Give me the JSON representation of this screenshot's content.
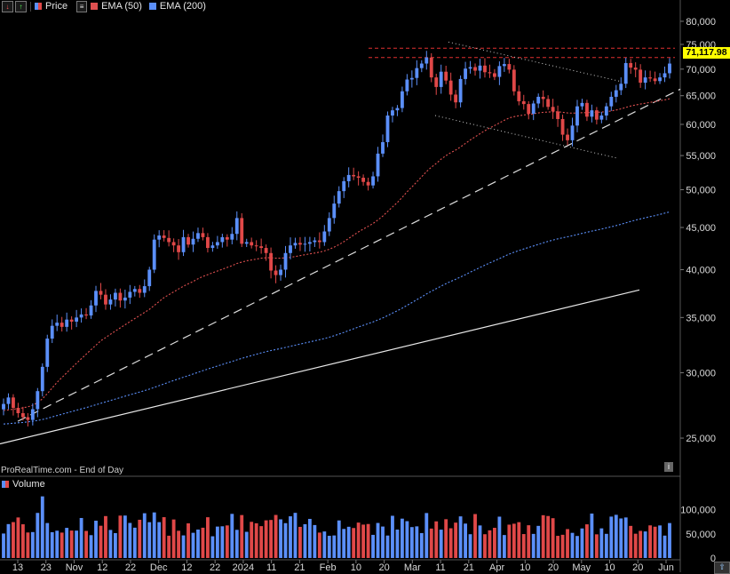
{
  "legend": {
    "price_label": "Price",
    "ema50_label": "EMA (50)",
    "ema200_label": "EMA (200)",
    "price_color": "#e04848",
    "ema50_color": "#e05050",
    "ema200_color": "#5b8ff9"
  },
  "watermark": "ProRealTime.com - End of Day",
  "volume_label": "Volume",
  "last_price": "71,117.98",
  "info_icon": "i",
  "chart_data": {
    "type": "candlestick",
    "scale": "log",
    "y_ticks": [
      "80,000",
      "75,000",
      "70,000",
      "65,000",
      "60,000",
      "55,000",
      "50,000",
      "45,000",
      "40,000",
      "35,000",
      "30,000",
      "25,000"
    ],
    "y_tick_values": [
      80000,
      75000,
      70000,
      65000,
      60000,
      55000,
      50000,
      45000,
      40000,
      35000,
      30000,
      25000
    ],
    "ylim": [
      23500,
      82000
    ],
    "x_ticks": [
      "13",
      "23",
      "Nov",
      "12",
      "22",
      "Dec",
      "12",
      "22",
      "2024",
      "11",
      "21",
      "Feb",
      "10",
      "20",
      "Mar",
      "11",
      "21",
      "Apr",
      "10",
      "20",
      "May",
      "10",
      "20",
      "Jun"
    ],
    "volume_ticks": [
      "100,000",
      "50,000",
      "0"
    ],
    "volume_tick_values": [
      100000,
      50000,
      0
    ],
    "volume_max": 140000,
    "closes": [
      27500,
      28000,
      27200,
      26800,
      26500,
      26300,
      27100,
      28500,
      30500,
      33000,
      34200,
      34500,
      34100,
      34800,
      34600,
      35000,
      35300,
      35200,
      36200,
      37700,
      37300,
      36300,
      36800,
      37500,
      36700,
      37000,
      37600,
      37900,
      37500,
      38200,
      40000,
      43500,
      44000,
      43700,
      43200,
      42800,
      42000,
      43800,
      42900,
      43600,
      44300,
      43800,
      42500,
      42800,
      43200,
      43800,
      43500,
      44200,
      46200,
      43000,
      43200,
      42800,
      42700,
      42500,
      41900,
      39900,
      39400,
      40000,
      41900,
      42800,
      43100,
      42900,
      43000,
      43200,
      43400,
      43200,
      44500,
      46200,
      48100,
      49800,
      51200,
      52100,
      51900,
      51700,
      51100,
      50600,
      51900,
      55300,
      57100,
      61500,
      62400,
      62800,
      65800,
      68000,
      68300,
      70200,
      71100,
      72300,
      68400,
      66600,
      69500,
      67800,
      65200,
      63800,
      68100,
      70100,
      70400,
      69700,
      70700,
      69400,
      69200,
      68500,
      70600,
      71000,
      69900,
      65800,
      64000,
      63500,
      61800,
      63600,
      64800,
      64400,
      63000,
      62200,
      60900,
      58300,
      57400,
      59800,
      63100,
      63700,
      61300,
      62400,
      60800,
      61500,
      63100,
      64800,
      66000,
      67200,
      71200,
      70300,
      69900,
      67400,
      68400,
      68200,
      67700,
      68400,
      69200,
      71100
    ],
    "ema50": [
      27000,
      27050,
      27100,
      27150,
      27200,
      27280,
      27400,
      27600,
      27900,
      28300,
      28750,
      29200,
      29600,
      30000,
      30400,
      30800,
      31200,
      31600,
      32000,
      32400,
      32800,
      33100,
      33400,
      33700,
      34000,
      34300,
      34600,
      34900,
      35200,
      35500,
      35800,
      36200,
      36600,
      37000,
      37300,
      37600,
      37900,
      38200,
      38450,
      38700,
      39000,
      39250,
      39450,
      39650,
      39850,
      40050,
      40250,
      40450,
      40700,
      40850,
      41000,
      41100,
      41200,
      41300,
      41350,
      41350,
      41300,
      41300,
      41350,
      41400,
      41500,
      41600,
      41700,
      41800,
      41900,
      42000,
      42150,
      42350,
      42600,
      42900,
      43250,
      43650,
      44050,
      44450,
      44800,
      45150,
      45500,
      45950,
      46450,
      47050,
      47650,
      48250,
      48950,
      49700,
      50400,
      51100,
      51850,
      52600,
      53250,
      53800,
      54450,
      55000,
      55450,
      55850,
      56350,
      56900,
      57450,
      57950,
      58450,
      58950,
      59400,
      59800,
      60250,
      60700,
      61100,
      61300,
      61450,
      61600,
      61700,
      61800,
      61950,
      62050,
      62100,
      62150,
      62150,
      62050,
      61950,
      61900,
      61950,
      62000,
      62000,
      62050,
      62050,
      62100,
      62150,
      62300,
      62450,
      62650,
      62900,
      63150,
      63350,
      63500,
      63650,
      63800,
      63950,
      64100,
      64250,
      64450
    ],
    "ema200": [
      26000,
      26030,
      26060,
      26090,
      26120,
      26160,
      26200,
      26260,
      26330,
      26420,
      26520,
      26620,
      26720,
      26820,
      26920,
      27020,
      27120,
      27220,
      27330,
      27440,
      27550,
      27660,
      27770,
      27880,
      27990,
      28100,
      28210,
      28320,
      28430,
      28540,
      28660,
      28800,
      28940,
      29080,
      29220,
      29360,
      29490,
      29630,
      29760,
      29900,
      30040,
      30180,
      30310,
      30440,
      30570,
      30700,
      30830,
      30960,
      31100,
      31230,
      31350,
      31470,
      31590,
      31710,
      31820,
      31920,
      32010,
      32100,
      32200,
      32300,
      32400,
      32500,
      32600,
      32700,
      32800,
      32900,
      33010,
      33130,
      33270,
      33420,
      33580,
      33750,
      33920,
      34090,
      34250,
      34410,
      34570,
      34760,
      34960,
      35190,
      35430,
      35670,
      35930,
      36210,
      36490,
      36780,
      37070,
      37380,
      37660,
      37930,
      38210,
      38470,
      38710,
      38940,
      39190,
      39450,
      39720,
      39980,
      40250,
      40510,
      40760,
      41000,
      41260,
      41520,
      41770,
      41990,
      42190,
      42380,
      42560,
      42740,
      42930,
      43110,
      43280,
      43440,
      43590,
      43720,
      43840,
      43970,
      44120,
      44270,
      44400,
      44540,
      44670,
      44800,
      44940,
      45090,
      45240,
      45400,
      45580,
      45760,
      45930,
      46080,
      46230,
      46380,
      46520,
      46670,
      46830,
      47000
    ]
  }
}
